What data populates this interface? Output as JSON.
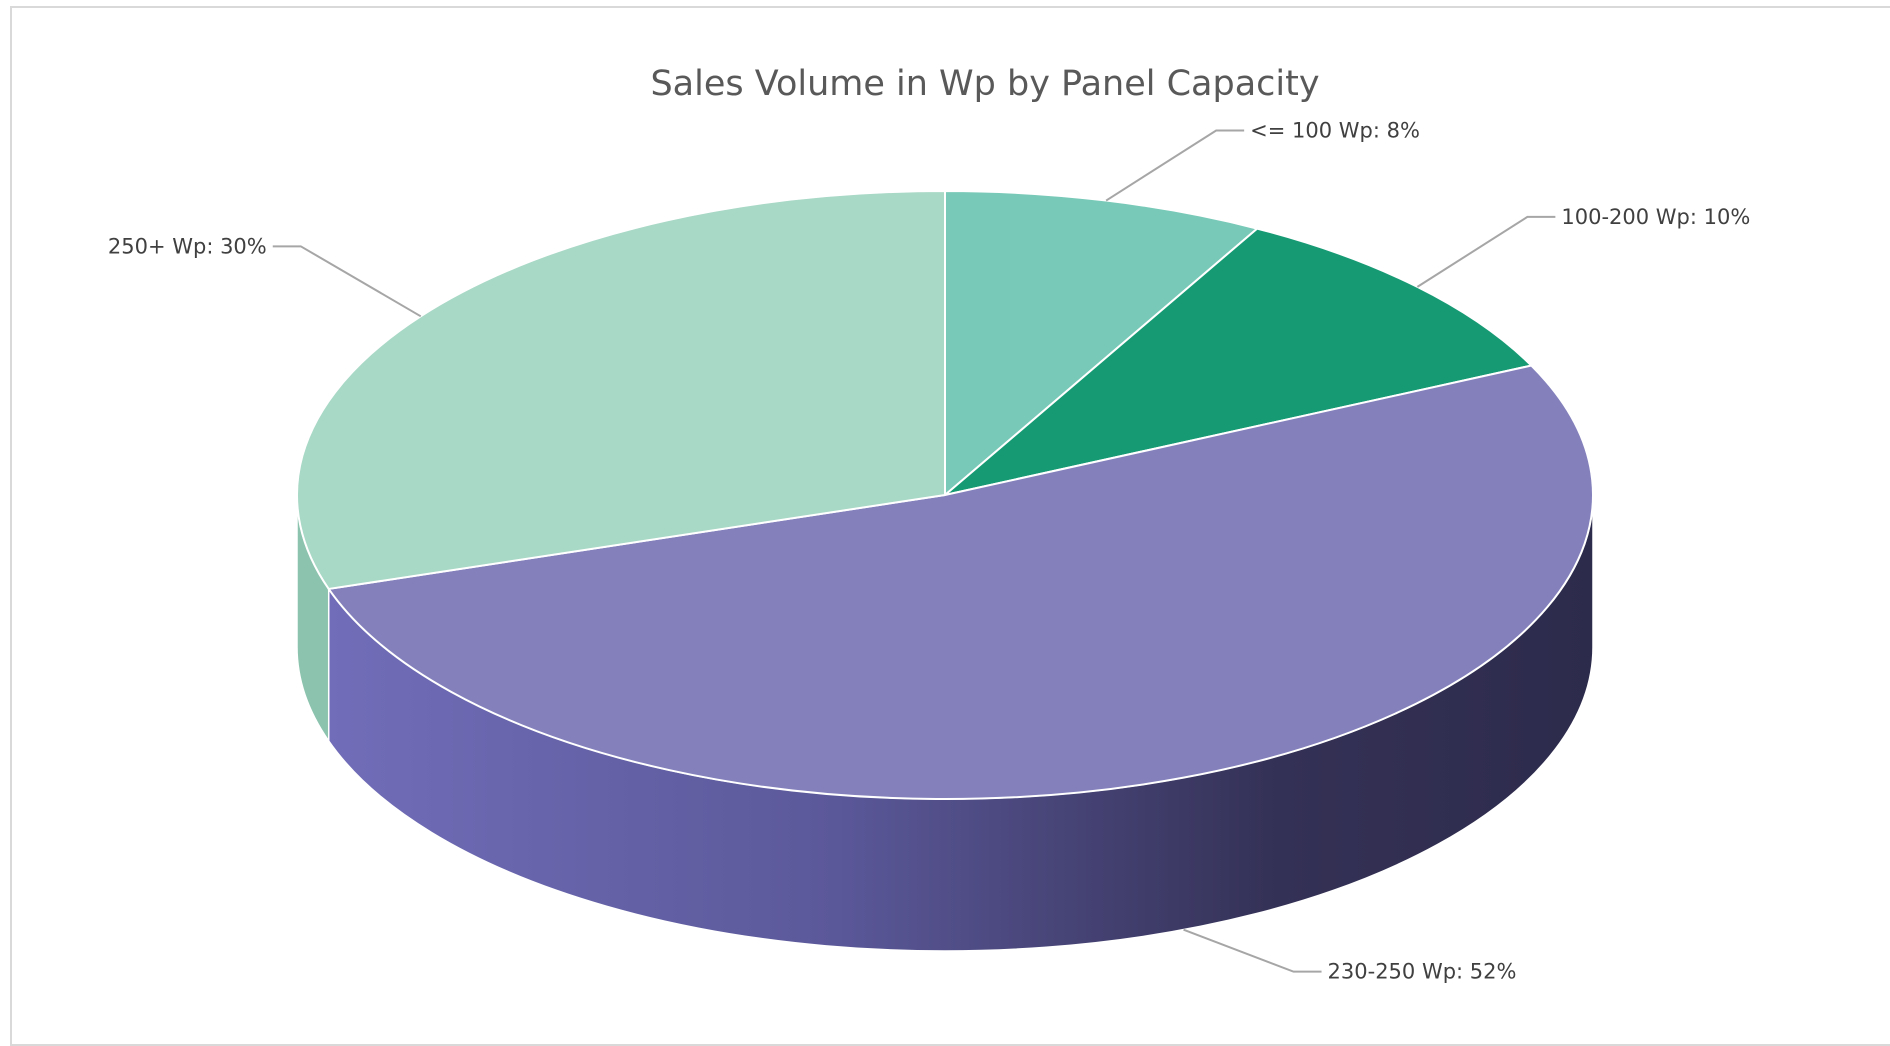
{
  "chart_data": {
    "type": "pie",
    "style": "3d",
    "title": "Sales Volume in Wp by Panel Capacity",
    "categories": [
      "<= 100 Wp",
      "100-200 Wp",
      "230-250 Wp",
      "250+ Wp"
    ],
    "values": [
      8,
      10,
      52,
      30
    ],
    "unit": "%",
    "labels": [
      "<= 100 Wp: 8%",
      "100-200 Wp: 10%",
      "230-250 Wp: 52%",
      "250+ Wp: 30%"
    ],
    "colors": [
      "#78c9b7",
      "#169a74",
      "#8380bc",
      "#a8d8c6"
    ],
    "side_colors": [
      "#5fae9c",
      "#0e7a5a",
      "#6c66ad",
      "#8cc3ae"
    ],
    "legend": "none"
  }
}
